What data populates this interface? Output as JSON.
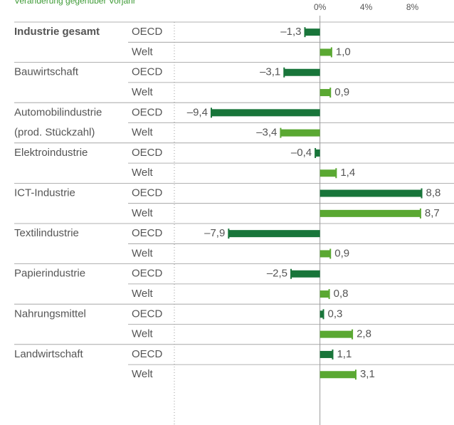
{
  "chart_data": {
    "type": "grouped_hbar",
    "subtitle": "Veränderung gegenüber Vorjahr",
    "categories": [
      "Industrie gesamt",
      "Bauwirtschaft",
      "Automobilindustrie",
      "Elektroindustrie",
      "ICT-Industrie",
      "Textilindustrie",
      "Papierindustrie",
      "Nahrungsmittel",
      "Landwirtschaft"
    ],
    "category_notes": [
      null,
      null,
      "(prod. Stückzahl)",
      null,
      null,
      null,
      null,
      null,
      null
    ],
    "highlight_category": 0,
    "series": [
      {
        "name": "OECD",
        "color": "#18753a",
        "values": [
          -1.3,
          -3.1,
          -9.4,
          -0.4,
          8.8,
          -7.9,
          -2.5,
          0.3,
          1.1
        ],
        "value_labels": [
          "–1,3",
          "–3,1",
          "–9,4",
          "–0,4",
          "8,8",
          "–7,9",
          "–2,5",
          "0,3",
          "1,1"
        ]
      },
      {
        "name": "Welt",
        "color": "#5aa832",
        "values": [
          1.0,
          0.9,
          -3.4,
          1.4,
          8.7,
          0.9,
          0.8,
          2.8,
          3.1
        ],
        "value_labels": [
          "1,0",
          "0,9",
          "–3,4",
          "1,4",
          "8,7",
          "0,9",
          "0,8",
          "2,8",
          "3,1"
        ]
      }
    ],
    "xlim": [
      -12.6,
      11.6
    ],
    "xticks": [
      {
        "value": 0,
        "label": "0%"
      },
      {
        "value": 4,
        "label": "4%"
      },
      {
        "value": 8,
        "label": "8%"
      }
    ]
  }
}
